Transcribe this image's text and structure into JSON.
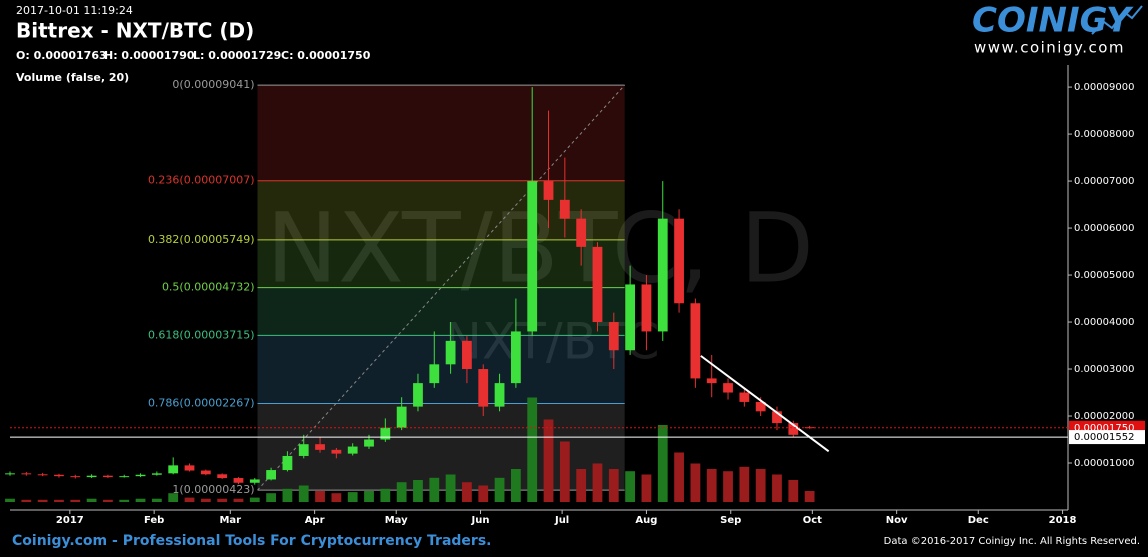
{
  "chart_data": {
    "type": "candlestick",
    "subtitle": "2017-10-01 11:19:24",
    "title": "Bittrex - NXT/BTC (D)",
    "ohlc_labels": [
      "O: 0.00001763",
      "H: 0.00001790",
      "L: 0.00001729",
      "C: 0.00001750"
    ],
    "indicator_label": "Volume (false, 20)",
    "watermark": [
      "NXT/BTC, D",
      "NXT/BTC"
    ],
    "logo": {
      "name": "COINIGY",
      "url": "www.coinigy.com"
    },
    "footer": {
      "left": "Coinigy.com - Professional Tools For Cryptocurrency Traders.",
      "right": "Data ©2016-2017 Coinigy Inc. All Rights Reserved."
    },
    "up_color": "#3ee03e",
    "down_color": "#e83030",
    "xlim": [
      -22,
      367
    ],
    "xticks": [
      {
        "value": 0,
        "label": "2017"
      },
      {
        "value": 31,
        "label": "Feb"
      },
      {
        "value": 59,
        "label": "Mar"
      },
      {
        "value": 90,
        "label": "Apr"
      },
      {
        "value": 120,
        "label": "May"
      },
      {
        "value": 151,
        "label": "Jun"
      },
      {
        "value": 181,
        "label": "Jul"
      },
      {
        "value": 212,
        "label": "Aug"
      },
      {
        "value": 243,
        "label": "Sep"
      },
      {
        "value": 273,
        "label": "Oct"
      },
      {
        "value": 304,
        "label": "Nov"
      },
      {
        "value": 334,
        "label": "Dec"
      },
      {
        "value": 365,
        "label": "2018"
      }
    ],
    "ylim": [
      0,
      9.47e-05
    ],
    "yticks": [
      {
        "value": 1e-05,
        "label": "0.00001000"
      },
      {
        "value": 2e-05,
        "label": "0.00002000"
      },
      {
        "value": 3e-05,
        "label": "0.00003000"
      },
      {
        "value": 4e-05,
        "label": "0.00004000"
      },
      {
        "value": 5e-05,
        "label": "0.00005000"
      },
      {
        "value": 6e-05,
        "label": "0.00006000"
      },
      {
        "value": 7e-05,
        "label": "0.00007000"
      },
      {
        "value": 8e-05,
        "label": "0.00008000"
      },
      {
        "value": 9e-05,
        "label": "0.00009000"
      }
    ],
    "grid": false,
    "x": [
      -22,
      -16,
      -10,
      -4,
      2,
      8,
      14,
      20,
      26,
      32,
      38,
      44,
      50,
      56,
      62,
      68,
      74,
      80,
      86,
      92,
      98,
      104,
      110,
      116,
      122,
      128,
      134,
      140,
      146,
      152,
      158,
      164,
      170,
      176,
      182,
      188,
      194,
      200,
      206,
      212,
      218,
      224,
      230,
      236,
      242,
      248,
      254,
      260,
      266,
      272
    ],
    "open": [
      7.6e-06,
      7.8e-06,
      7.6e-06,
      7.5e-06,
      7.2e-06,
      7e-06,
      7.3e-06,
      7e-06,
      7.2e-06,
      7.5e-06,
      7.8e-06,
      9.5e-06,
      8.4e-06,
      7.6e-06,
      6.8e-06,
      5.8e-06,
      6.5e-06,
      8.5e-06,
      1.15e-05,
      1.4e-05,
      1.28e-05,
      1.2e-05,
      1.35e-05,
      1.5e-05,
      1.75e-05,
      2.2e-05,
      2.7e-05,
      3.1e-05,
      3.6e-05,
      3e-05,
      2.2e-05,
      2.7e-05,
      3.8e-05,
      7e-05,
      6.6e-05,
      6.2e-05,
      5.6e-05,
      4e-05,
      3.4e-05,
      4.8e-05,
      3.8e-05,
      6.2e-05,
      4.4e-05,
      2.8e-05,
      2.7e-05,
      2.5e-05,
      2.3e-05,
      2.1e-05,
      1.85e-05,
      1.763e-05
    ],
    "high": [
      8.2e-06,
      8.1e-06,
      7.9e-06,
      7.7e-06,
      7.5e-06,
      7.6e-06,
      7.5e-06,
      7.5e-06,
      7.8e-06,
      8.2e-06,
      1.12e-05,
      9.9e-06,
      8.6e-06,
      7.8e-06,
      7e-06,
      6.8e-06,
      9e-06,
      1.25e-05,
      1.6e-05,
      1.55e-05,
      1.32e-05,
      1.42e-05,
      1.6e-05,
      1.95e-05,
      2.4e-05,
      2.9e-05,
      3.8e-05,
      4e-05,
      3.7e-05,
      3.1e-05,
      2.9e-05,
      4.5e-05,
      9e-05,
      8.5e-05,
      7.5e-05,
      6.4e-05,
      5.7e-05,
      4.2e-05,
      5.2e-05,
      5e-05,
      7e-05,
      6.4e-05,
      4.5e-05,
      3.3e-05,
      2.8e-05,
      2.6e-05,
      2.4e-05,
      2.2e-05,
      1.9e-05,
      1.79e-05
    ],
    "low": [
      7.3e-06,
      7.3e-06,
      7.2e-06,
      6.9e-06,
      6.7e-06,
      6.8e-06,
      6.8e-06,
      6.9e-06,
      7e-06,
      7.3e-06,
      7.6e-06,
      8.2e-06,
      7.4e-06,
      6.6e-06,
      5.5e-06,
      5.4e-06,
      6.3e-06,
      8.2e-06,
      1.1e-05,
      1.22e-05,
      1.1e-05,
      1.16e-05,
      1.3e-05,
      1.45e-05,
      1.7e-05,
      2.1e-05,
      2.6e-05,
      2.9e-05,
      2.7e-05,
      2e-05,
      2.1e-05,
      2.6e-05,
      3.7e-05,
      6e-05,
      5.8e-05,
      5.2e-05,
      3.8e-05,
      3e-05,
      3.3e-05,
      3.4e-05,
      3.6e-05,
      4.2e-05,
      2.6e-05,
      2.4e-05,
      2.35e-05,
      2.2e-05,
      2e-05,
      1.7e-05,
      1.55e-05,
      1.729e-05
    ],
    "close": [
      7.8e-06,
      7.6e-06,
      7.5e-06,
      7.2e-06,
      7e-06,
      7.3e-06,
      7e-06,
      7.2e-06,
      7.5e-06,
      7.8e-06,
      9.5e-06,
      8.4e-06,
      7.6e-06,
      6.8e-06,
      5.8e-06,
      6.5e-06,
      8.5e-06,
      1.15e-05,
      1.4e-05,
      1.28e-05,
      1.2e-05,
      1.35e-05,
      1.5e-05,
      1.75e-05,
      2.2e-05,
      2.7e-05,
      3.1e-05,
      3.6e-05,
      3e-05,
      2.2e-05,
      2.7e-05,
      3.8e-05,
      7e-05,
      6.6e-05,
      6.2e-05,
      5.6e-05,
      4e-05,
      3.4e-05,
      4.8e-05,
      3.8e-05,
      6.2e-05,
      4.4e-05,
      2.8e-05,
      2.7e-05,
      2.5e-05,
      2.3e-05,
      2.1e-05,
      1.85e-05,
      1.6e-05,
      1.75e-05
    ],
    "volume": [
      3,
      2,
      2,
      2,
      2,
      3,
      2,
      2,
      3,
      3,
      8,
      4,
      3,
      3,
      3,
      4,
      8,
      12,
      15,
      10,
      8,
      9,
      10,
      12,
      18,
      20,
      22,
      25,
      18,
      15,
      22,
      30,
      95,
      75,
      55,
      30,
      35,
      30,
      28,
      25,
      70,
      45,
      35,
      30,
      28,
      32,
      30,
      25,
      20,
      10
    ],
    "volume_up_color": "#1f7a1f",
    "volume_down_color": "#9b1c1c",
    "fibonacci": {
      "x": [
        69,
        204
      ],
      "levels": [
        {
          "value": 9.041e-05,
          "label": "0(0.00009041)",
          "color": "#9a9a9a"
        },
        {
          "value": 7.007e-05,
          "label": "0.236(0.00007007)",
          "color": "#d9342b"
        },
        {
          "value": 5.749e-05,
          "label": "0.382(0.00005749)",
          "color": "#b7cf3a"
        },
        {
          "value": 4.732e-05,
          "label": "0.5(0.00004732)",
          "color": "#6fcf4a"
        },
        {
          "value": 3.715e-05,
          "label": "0.618(0.00003715)",
          "color": "#3fbf7f"
        },
        {
          "value": 2.267e-05,
          "label": "0.786(0.00002267)",
          "color": "#4a9fd0"
        },
        {
          "value": 4.23e-06,
          "label": "1(0.00000423)",
          "color": "#9a9a9a"
        }
      ]
    },
    "price_lines": [
      {
        "value": 1.75e-05,
        "label": "0.00001750",
        "color": "#e01010",
        "dashed": true
      },
      {
        "value": 1.552e-05,
        "label": "0.00001552",
        "color": "#ffffff",
        "dashed": false
      }
    ],
    "trendline": {
      "x": [
        232,
        279
      ],
      "y": [
        3.28e-05,
        1.25e-05
      ],
      "color": "#ffffff"
    }
  }
}
